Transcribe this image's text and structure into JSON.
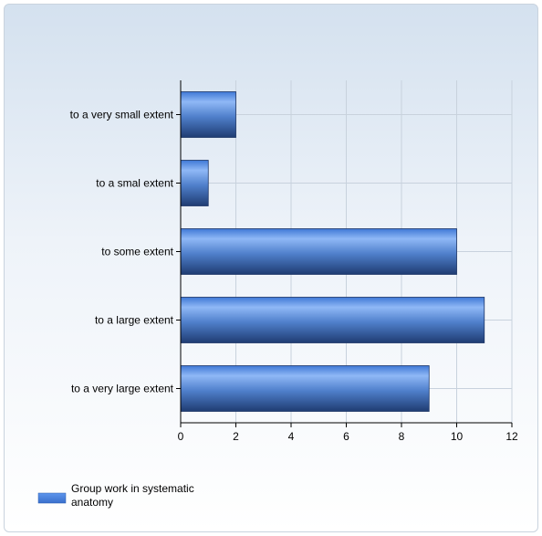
{
  "chart_data": {
    "type": "bar",
    "orientation": "horizontal",
    "categories": [
      "to a very small extent",
      "to a smal extent",
      "to some extent",
      "to a large extent",
      "to a very large extent"
    ],
    "series": [
      {
        "name": "Group work in systematic anatomy",
        "values": [
          2,
          1,
          10,
          11,
          9
        ],
        "color": "#4d86e0"
      }
    ],
    "xlim": [
      0,
      12
    ],
    "xticks": [
      "0",
      "2",
      "4",
      "6",
      "8",
      "10",
      "12"
    ],
    "grid": true,
    "legend_position": "bottom-left",
    "legend_lines": [
      "Group work in systematic",
      "anatomy"
    ]
  }
}
